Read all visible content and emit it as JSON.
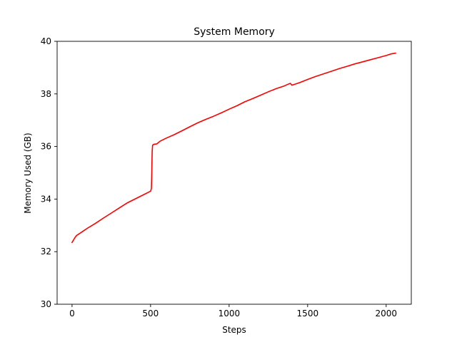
{
  "chart_data": {
    "type": "line",
    "title": "System Memory",
    "xlabel": "Steps",
    "ylabel": "Memory Used (GB)",
    "xlim": [
      -95,
      2160
    ],
    "ylim": [
      30,
      40
    ],
    "x_ticks": [
      0,
      500,
      1000,
      1500,
      2000
    ],
    "y_ticks": [
      30,
      32,
      34,
      36,
      38,
      40
    ],
    "grid": false,
    "legend": "none",
    "series": [
      {
        "color": "#ff0000",
        "x": [
          0,
          10,
          20,
          30,
          50,
          75,
          100,
          150,
          200,
          250,
          300,
          350,
          400,
          450,
          500,
          505,
          507,
          510,
          513,
          520,
          540,
          560,
          600,
          650,
          700,
          750,
          800,
          850,
          900,
          950,
          1000,
          1050,
          1100,
          1150,
          1200,
          1250,
          1300,
          1350,
          1380,
          1390,
          1400,
          1450,
          1500,
          1550,
          1600,
          1650,
          1700,
          1750,
          1800,
          1850,
          1900,
          1950,
          2000,
          2030,
          2060
        ],
        "y": [
          32.35,
          32.45,
          32.55,
          32.62,
          32.7,
          32.8,
          32.9,
          33.08,
          33.28,
          33.47,
          33.66,
          33.85,
          34.0,
          34.15,
          34.3,
          34.4,
          34.8,
          35.8,
          36.05,
          36.08,
          36.1,
          36.2,
          36.32,
          36.45,
          36.6,
          36.75,
          36.9,
          37.03,
          37.15,
          37.28,
          37.42,
          37.55,
          37.7,
          37.82,
          37.95,
          38.08,
          38.2,
          38.3,
          38.38,
          38.4,
          38.33,
          38.43,
          38.55,
          38.66,
          38.76,
          38.86,
          38.96,
          39.05,
          39.14,
          39.22,
          39.3,
          39.38,
          39.46,
          39.52,
          39.55
        ]
      }
    ]
  }
}
